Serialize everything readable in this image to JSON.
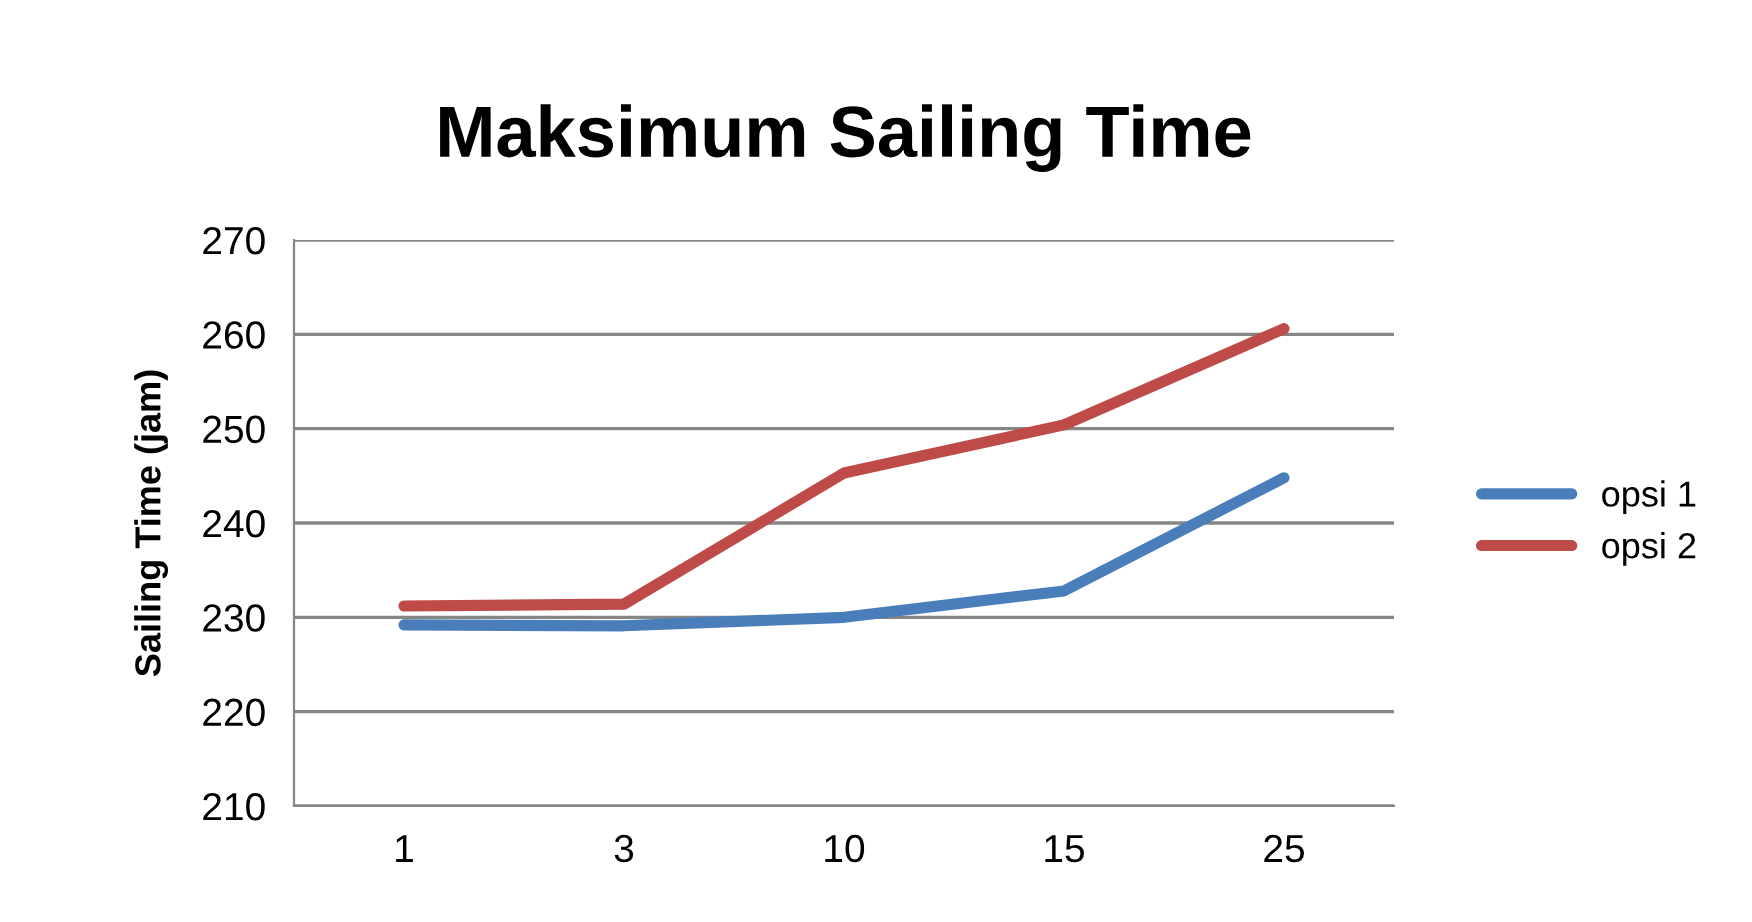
{
  "chart_data": {
    "type": "line",
    "title": "Maksimum Sailing Time",
    "ylabel": "Sailing Time (jam)",
    "categories": [
      "1",
      "3",
      "10",
      "15",
      "25"
    ],
    "series": [
      {
        "name": "opsi 1",
        "color": "#4a7ebb",
        "values": [
          229.2,
          229.1,
          230.0,
          232.8,
          244.8
        ]
      },
      {
        "name": "opsi 2",
        "color": "#be4b48",
        "values": [
          231.2,
          231.4,
          245.3,
          250.4,
          260.6
        ]
      }
    ],
    "ylim": [
      210,
      270
    ],
    "yticks": [
      210,
      220,
      230,
      240,
      250,
      260,
      270
    ],
    "grid": "y",
    "legend": "right",
    "marker": "none",
    "line_style": "solid"
  }
}
